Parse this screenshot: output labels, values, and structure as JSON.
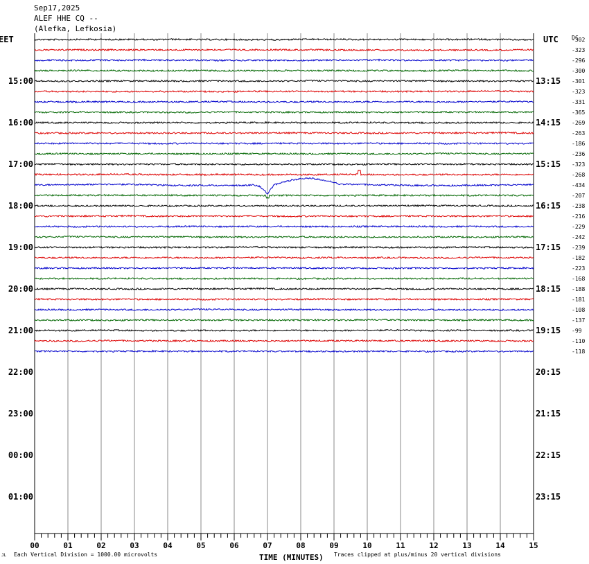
{
  "header": {
    "date": "Sep17,2025",
    "station": "ALEF HHE CQ --",
    "location": "(Alefka, Lefkosia)"
  },
  "left_tz": "EET",
  "right_tz": "UTC",
  "dc_label": "DC",
  "footer": {
    "corner": "JL",
    "scale": "Each Vertical Division = 1000.00 microvolts",
    "clipped": "Traces clipped at plus/minus 20 vertical divisions"
  },
  "colors": {
    "trace_cycle": [
      "#000000",
      "#dd0000",
      "#0000cc",
      "#006600"
    ],
    "grid": "#888888"
  },
  "chart_data": {
    "type": "line",
    "subtype": "helicorder",
    "xlabel": "TIME (MINUTES)",
    "x_ticks": [
      "00",
      "01",
      "02",
      "03",
      "04",
      "05",
      "06",
      "07",
      "08",
      "09",
      "10",
      "11",
      "12",
      "13",
      "14",
      "15"
    ],
    "xlim": [
      0,
      15
    ],
    "minutes_per_row": 15,
    "rows_total": 48,
    "left_hour_labels": [
      "15:00",
      "16:00",
      "17:00",
      "18:00",
      "19:00",
      "20:00",
      "21:00",
      "22:00",
      "23:00",
      "00:00",
      "01:00"
    ],
    "right_hour_labels": [
      "13:15",
      "14:15",
      "15:15",
      "16:15",
      "17:15",
      "18:15",
      "19:15",
      "20:15",
      "21:15",
      "22:15",
      "23:15"
    ],
    "first_label_row": 4,
    "rows_per_label": 4,
    "dc_offsets": [
      -302,
      -323,
      -296,
      -300,
      -301,
      -323,
      -331,
      -365,
      -269,
      -263,
      -186,
      -236,
      -323,
      -268,
      -434,
      -207,
      -238,
      -216,
      -229,
      -242,
      -239,
      -182,
      -223,
      -168,
      -188,
      -181,
      -108,
      -137,
      -99,
      -110,
      -118
    ],
    "events": [
      {
        "row": 13,
        "minute": 9.75,
        "description": "spike"
      },
      {
        "row": 14,
        "minute_start": 6.8,
        "minute_end": 8.5,
        "description": "large long-period wave"
      },
      {
        "row": 15,
        "minute": 7.0,
        "description": "downward spike"
      }
    ]
  }
}
